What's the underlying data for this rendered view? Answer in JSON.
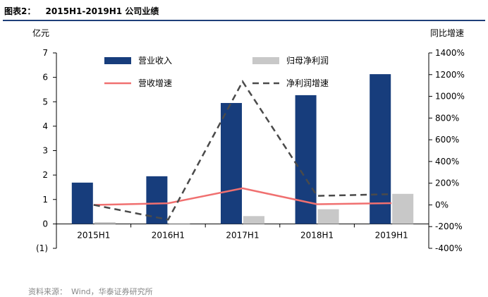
{
  "figure": {
    "caption_no": "图表2：",
    "caption_title": "2015H1-2019H1 公司业绩",
    "source_label": "资料来源：",
    "source_text": "Wind，华泰证券研究所"
  },
  "chart_data": {
    "type": "bar",
    "title": "2015H1-2019H1 公司业绩",
    "categories": [
      "2015H1",
      "2016H1",
      "2017H1",
      "2018H1",
      "2019H1"
    ],
    "left_axis": {
      "unit_label": "亿元",
      "ylim": [
        -1,
        7
      ],
      "ticks": [
        7,
        6,
        5,
        4,
        3,
        2,
        1,
        0,
        -1
      ],
      "tick_labels": [
        "7",
        "6",
        "5",
        "4",
        "3",
        "2",
        "1",
        "0",
        "(1)"
      ]
    },
    "right_axis": {
      "unit_label": "同比增速",
      "ylim": [
        -400,
        1400
      ],
      "ticks": [
        1400,
        1200,
        1000,
        800,
        600,
        400,
        200,
        0,
        -200,
        -400
      ],
      "tick_labels": [
        "1400%",
        "1200%",
        "1000%",
        "800%",
        "600%",
        "400%",
        "200%",
        "0%",
        "-200%",
        "-400%"
      ]
    },
    "series": [
      {
        "name": "营业收入",
        "kind": "bar",
        "axis": "left",
        "color": "#173d7c",
        "values": [
          1.69,
          1.95,
          4.95,
          5.27,
          6.13
        ]
      },
      {
        "name": "归母净利润",
        "kind": "bar",
        "axis": "left",
        "color": "#c8c8c8",
        "values": [
          0.07,
          -0.02,
          0.32,
          0.6,
          1.23
        ]
      },
      {
        "name": "营收增速",
        "kind": "line",
        "axis": "right",
        "color": "#f07070",
        "dash": false,
        "values": [
          0,
          15,
          153,
          6,
          16
        ]
      },
      {
        "name": "净利润增速",
        "kind": "line",
        "axis": "right",
        "color": "#4a4a4a",
        "dash": true,
        "values": [
          0,
          -136,
          1136,
          83,
          99
        ]
      }
    ],
    "legend_placement": "top-inside",
    "grid": false
  }
}
